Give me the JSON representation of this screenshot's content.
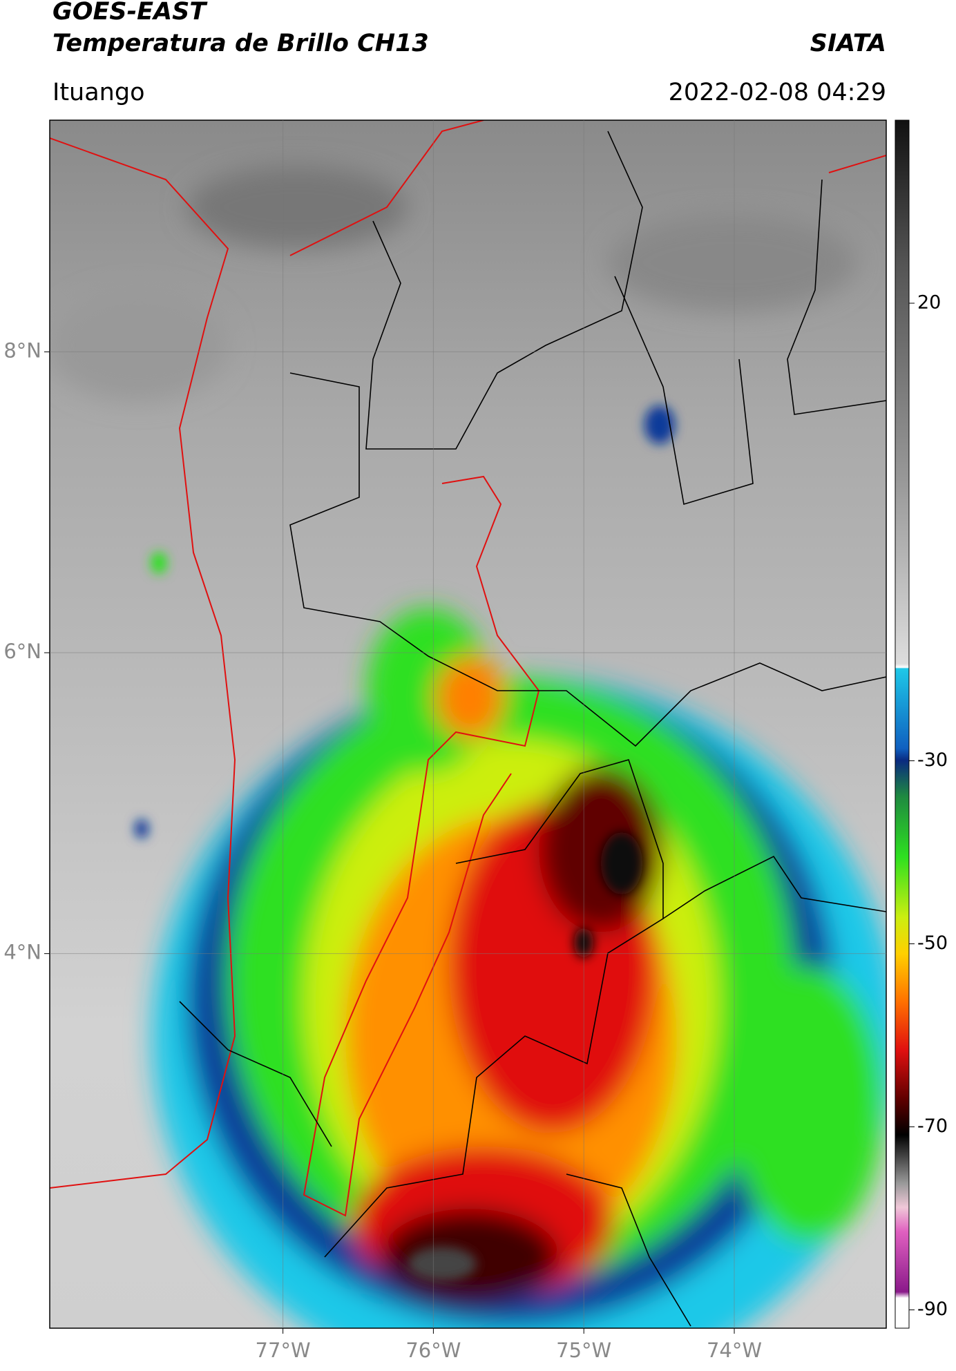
{
  "map": {
    "title": "GOES-EAST",
    "subtitle": "Temperatura de Brillo CH13",
    "source": "SIATA",
    "location": "Ituango",
    "datetime": "2022-02-08 04:29",
    "lonlim": [
      -78.55,
      -72.99
    ],
    "latlim": [
      1.51,
      9.54
    ],
    "lonticks": [
      {
        "value": -77,
        "label": "77°W"
      },
      {
        "value": -76,
        "label": "76°W"
      },
      {
        "value": -75,
        "label": "75°W"
      },
      {
        "value": -74,
        "label": "74°W"
      }
    ],
    "latticks": [
      {
        "value": 8,
        "label": "8°N"
      },
      {
        "value": 6,
        "label": "6°N"
      },
      {
        "value": 4,
        "label": "4°N"
      }
    ],
    "grid": true,
    "colorbar": {
      "lim": [
        -92,
        40
      ],
      "ticks": [
        20,
        -30,
        -50,
        -70,
        -90
      ]
    }
  }
}
